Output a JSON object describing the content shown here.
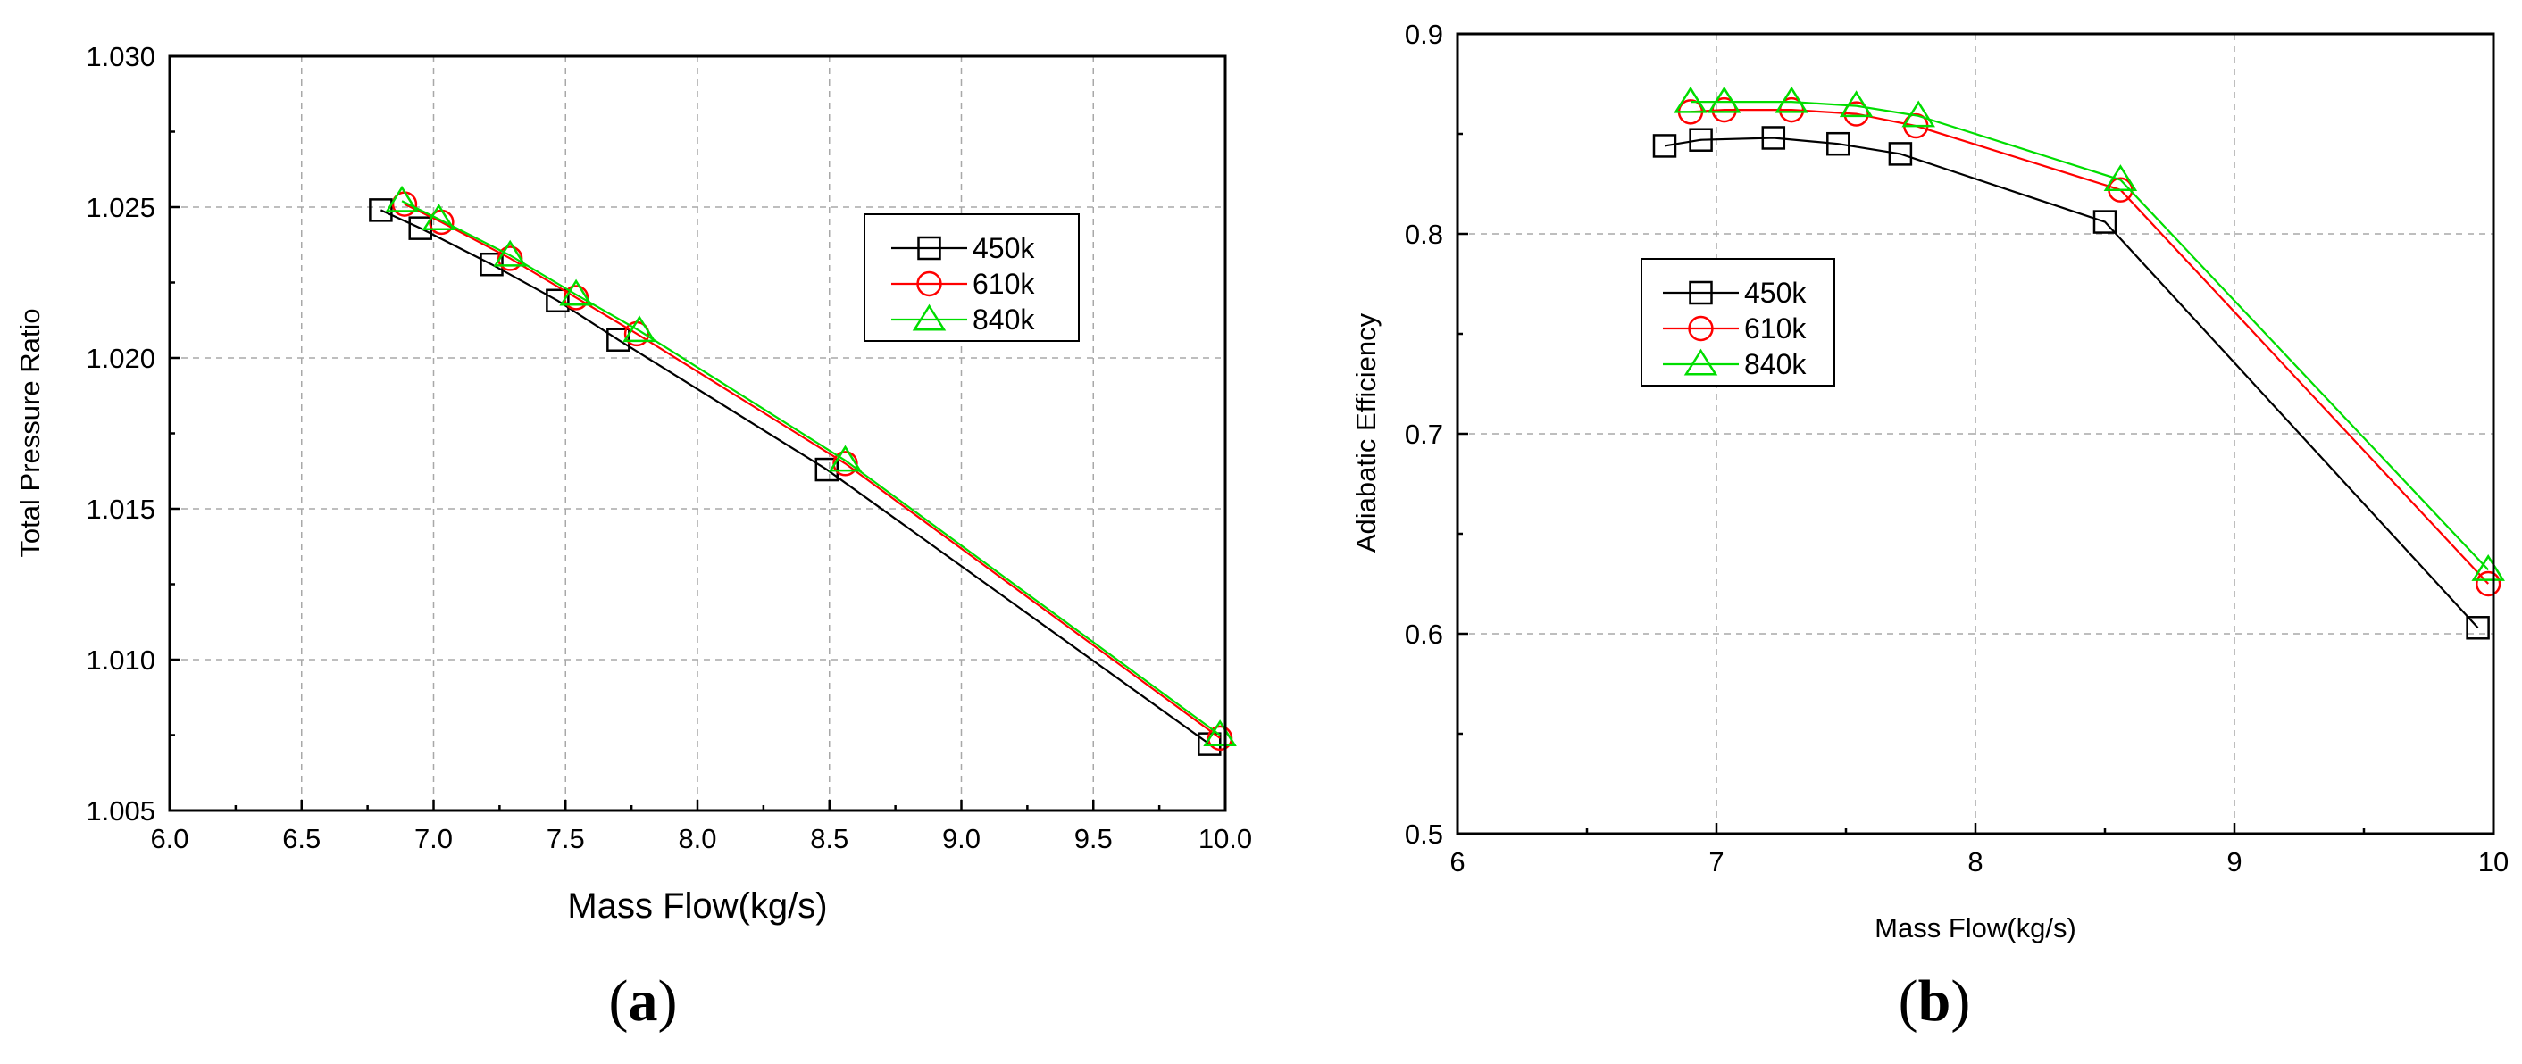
{
  "chart_data": [
    {
      "type": "line",
      "panel_label": "a",
      "title": "",
      "xlabel": "Mass Flow(kg/s)",
      "ylabel": "Total Pressure Ratio",
      "xlim": [
        6.0,
        10.0
      ],
      "ylim": [
        1.005,
        1.03
      ],
      "x_ticks": [
        "6.0",
        "6.5",
        "7.0",
        "7.5",
        "8.0",
        "8.5",
        "9.0",
        "9.5",
        "10.0"
      ],
      "y_ticks": [
        "1.005",
        "1.010",
        "1.015",
        "1.020",
        "1.025",
        "1.030"
      ],
      "grid": true,
      "legend_position": "top-right",
      "series": [
        {
          "name": "450k",
          "marker": "square",
          "color": "#000000",
          "x": [
            6.8,
            6.95,
            7.22,
            7.47,
            7.7,
            8.49,
            9.94
          ],
          "y": [
            1.0249,
            1.0243,
            1.0231,
            1.0219,
            1.0206,
            1.0163,
            1.0072
          ]
        },
        {
          "name": "610k",
          "marker": "circle",
          "color": "#ff0000",
          "x": [
            6.89,
            7.03,
            7.29,
            7.54,
            7.77,
            8.56,
            9.98
          ],
          "y": [
            1.0251,
            1.0245,
            1.0233,
            1.022,
            1.0208,
            1.0165,
            1.0074
          ]
        },
        {
          "name": "840k",
          "marker": "triangle",
          "color": "#00dd00",
          "x": [
            6.88,
            7.02,
            7.29,
            7.54,
            7.78,
            8.56,
            9.98
          ],
          "y": [
            1.0252,
            1.0246,
            1.0234,
            1.0221,
            1.0209,
            1.0166,
            1.0075
          ]
        }
      ]
    },
    {
      "type": "line",
      "panel_label": "b",
      "title": "",
      "xlabel": "Mass Flow(kg/s)",
      "ylabel": "Adiabatic Efficiency",
      "xlim": [
        6,
        10
      ],
      "ylim": [
        0.5,
        0.9
      ],
      "x_ticks": [
        "6",
        "7",
        "8",
        "9",
        "10"
      ],
      "y_ticks": [
        "0.5",
        "0.6",
        "0.7",
        "0.8",
        "0.9"
      ],
      "grid": true,
      "legend_position": "upper-left-center",
      "series": [
        {
          "name": "450k",
          "marker": "square",
          "color": "#000000",
          "x": [
            6.8,
            6.94,
            7.22,
            7.47,
            7.71,
            8.5,
            9.94
          ],
          "y": [
            0.844,
            0.847,
            0.848,
            0.845,
            0.84,
            0.806,
            0.603
          ]
        },
        {
          "name": "610k",
          "marker": "circle",
          "color": "#ff0000",
          "x": [
            6.9,
            7.03,
            7.29,
            7.54,
            7.77,
            8.56,
            9.98
          ],
          "y": [
            0.861,
            0.862,
            0.862,
            0.86,
            0.854,
            0.822,
            0.625
          ]
        },
        {
          "name": "840k",
          "marker": "triangle",
          "color": "#00dd00",
          "x": [
            6.9,
            7.03,
            7.29,
            7.54,
            7.78,
            8.56,
            9.98
          ],
          "y": [
            0.866,
            0.866,
            0.866,
            0.864,
            0.859,
            0.827,
            0.632
          ]
        }
      ]
    }
  ]
}
